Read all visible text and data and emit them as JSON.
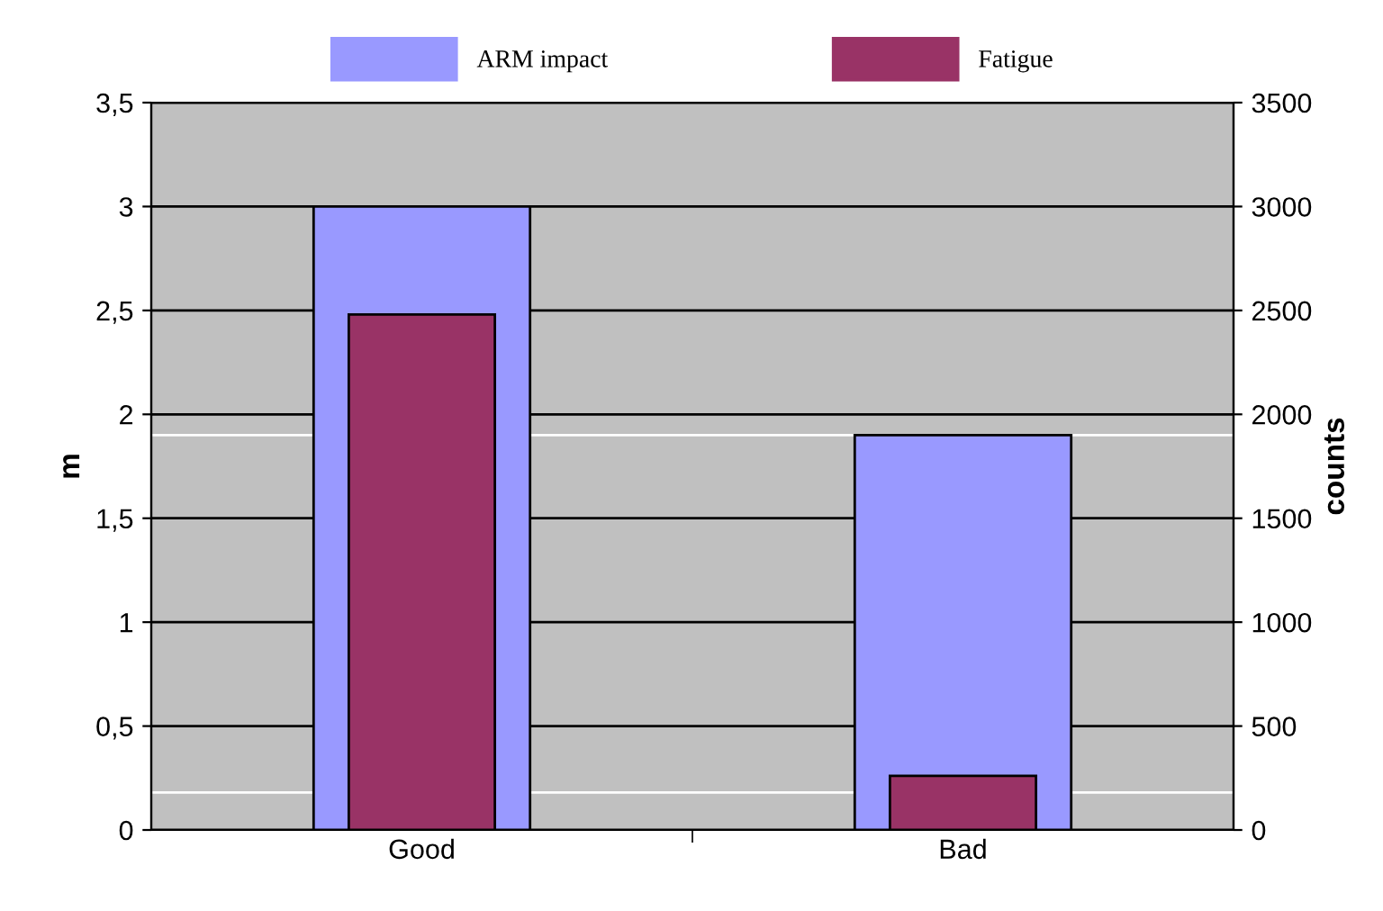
{
  "chart_data": {
    "type": "bar",
    "categories": [
      "Good",
      "Bad"
    ],
    "series": [
      {
        "name": "ARM impact",
        "color": "#9999ff",
        "values": [
          3.0,
          1.9
        ]
      },
      {
        "name": "Fatigue",
        "color": "#993366",
        "values": [
          2480,
          260
        ],
        "axis": "y2"
      }
    ],
    "ylabel": "m",
    "y2label": "counts",
    "ylim": [
      0,
      3.5
    ],
    "yticks": [
      0,
      {
        "value": 0.5,
        "label": "0,5"
      },
      1,
      {
        "value": 1.5,
        "label": "1,5"
      },
      2,
      {
        "value": 2.5,
        "label": "2,5"
      },
      3,
      {
        "value": 3.5,
        "label": "3,5"
      }
    ],
    "y2lim": [
      0,
      3500
    ],
    "y2ticks": [
      0,
      500,
      1000,
      1500,
      2000,
      2500,
      3000,
      3500
    ],
    "ref_lines": [
      {
        "axis": "y",
        "value": 1.9,
        "color": "#ffffff"
      },
      {
        "axis": "y",
        "value": 0.18,
        "color": "#ffffff"
      }
    ],
    "grid": "y",
    "legend": "top"
  }
}
